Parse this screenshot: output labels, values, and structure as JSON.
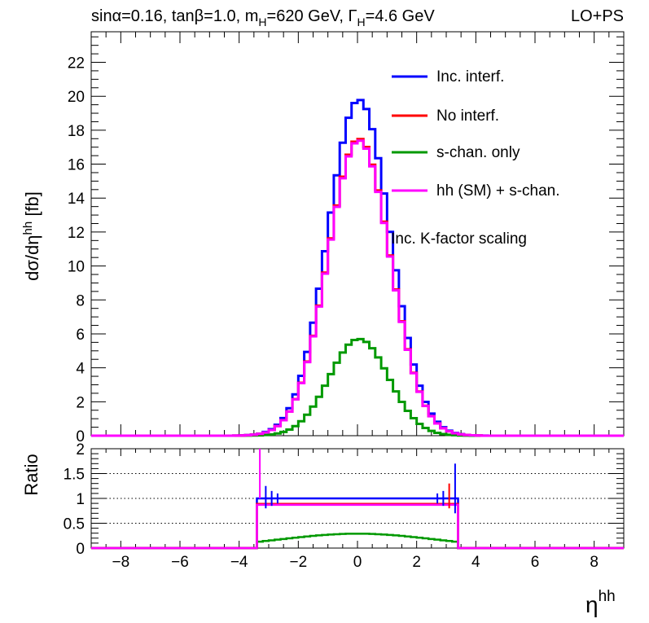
{
  "chart_data": {
    "type": "line",
    "title_left": "sinα=0.16, tanβ=1.0, m",
    "title_mH_sub": "H",
    "title_mid": "=620 GeV, Γ",
    "title_GH_sub": "H",
    "title_end": "=4.6 GeV",
    "title_right": "LO+PS",
    "xlabel": "η",
    "xlabel_sup": "hh",
    "ylabel": "dσ/dη",
    "ylabel_sup": "hh",
    "ylabel_unit": " [fb]",
    "ratio_ylabel": "Ratio",
    "xlim": [
      -9,
      9
    ],
    "ylim": [
      0,
      23.8
    ],
    "ratio_ylim": [
      0,
      2
    ],
    "bin_width": 0.2,
    "x_ticks": [
      "−8",
      "−6",
      "−4",
      "−2",
      "0",
      "2",
      "4",
      "6",
      "8"
    ],
    "y_ticks": [
      "0",
      "2",
      "4",
      "6",
      "8",
      "10",
      "12",
      "14",
      "16",
      "18",
      "20",
      "22"
    ],
    "ratio_ticks": [
      "0",
      "0.5",
      "1",
      "1.5",
      "2"
    ],
    "annotation": "Inc. K-factor scaling",
    "series": [
      {
        "name": "Inc. interf.",
        "color": "#0000ff",
        "peak": 19.8,
        "sigma": 1.05
      },
      {
        "name": "No interf.",
        "color": "#ff0000",
        "peak": 17.5,
        "sigma": 1.05
      },
      {
        "name": "s-chan. only",
        "color": "#009900",
        "peak": 5.7,
        "sigma": 1.0
      },
      {
        "name": "hh (SM) + s-chan.",
        "color": "#ff00ff",
        "peak": 17.4,
        "sigma": 1.05
      }
    ],
    "ratio_series": [
      {
        "name": "Inc. interf.",
        "color": "#0000ff",
        "level": 1.0
      },
      {
        "name": "No interf.",
        "color": "#ff0000",
        "level": 0.89
      },
      {
        "name": "s-chan. only",
        "color": "#009900",
        "level": 0.29
      },
      {
        "name": "hh (SM) + s-chan.",
        "color": "#ff00ff",
        "level": 0.87
      }
    ],
    "ratio_range": [
      -3.4,
      3.4
    ],
    "grid_ratio_lines": [
      0.5,
      1,
      1.5
    ]
  }
}
